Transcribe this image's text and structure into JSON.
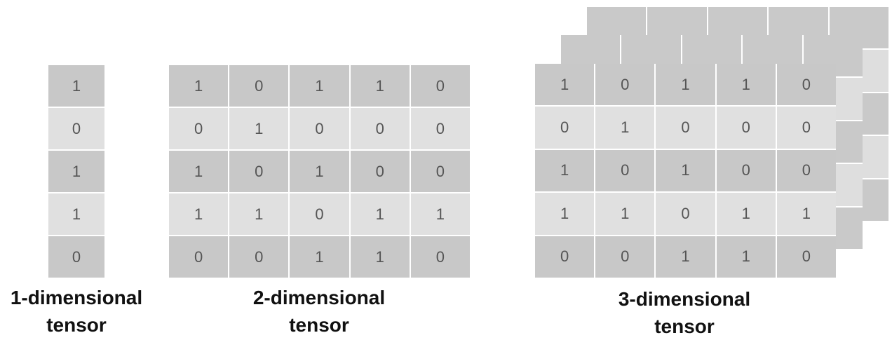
{
  "tensor1d": {
    "label_line1": "1-dimensional",
    "label_line2": "tensor",
    "values": [
      [
        1
      ],
      [
        0
      ],
      [
        1
      ],
      [
        1
      ],
      [
        0
      ]
    ]
  },
  "tensor2d": {
    "label_line1": "2-dimensional",
    "label_line2": "tensor",
    "values": [
      [
        1,
        0,
        1,
        1,
        0
      ],
      [
        0,
        1,
        0,
        0,
        0
      ],
      [
        1,
        0,
        1,
        0,
        0
      ],
      [
        1,
        1,
        0,
        1,
        1
      ],
      [
        0,
        0,
        1,
        1,
        0
      ]
    ]
  },
  "tensor3d": {
    "label_line1": "3-dimensional",
    "label_line2": "tensor",
    "values": [
      [
        1,
        0,
        1,
        1,
        0
      ],
      [
        0,
        1,
        0,
        0,
        0
      ],
      [
        1,
        0,
        1,
        0,
        0
      ],
      [
        1,
        1,
        0,
        1,
        1
      ],
      [
        0,
        0,
        1,
        1,
        0
      ]
    ]
  },
  "colors": {
    "cell_dark": "#c8c8c8",
    "cell_light": "#e0e0e0",
    "text": "#555555",
    "label": "#111111"
  }
}
